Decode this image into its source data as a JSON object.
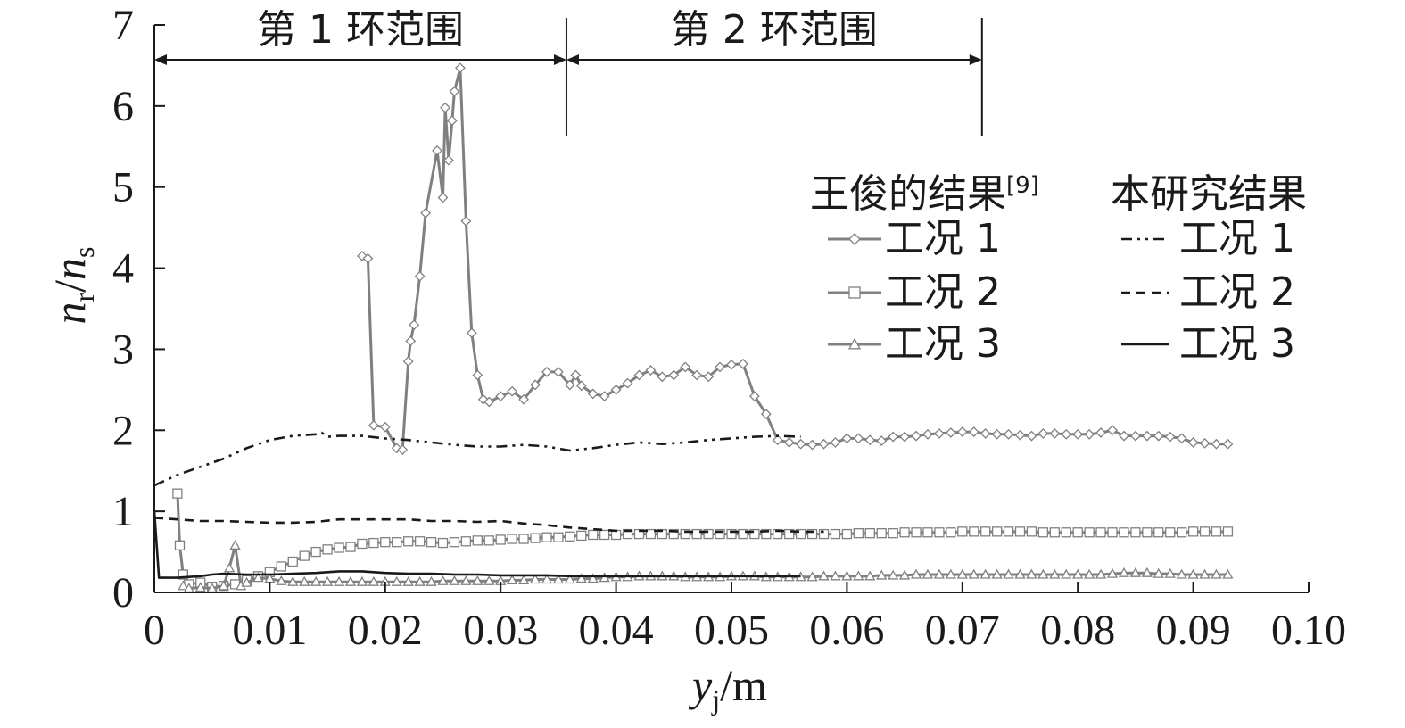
{
  "chart_data": {
    "type": "line",
    "xlabel": {
      "base": "y",
      "sub": "j",
      "unit": "/m"
    },
    "ylabel": {
      "base1": "n",
      "sub1": "r",
      "slash": "/",
      "base2": "n",
      "sub2": "s"
    },
    "xlim": [
      0,
      0.1
    ],
    "ylim": [
      0,
      7
    ],
    "xticks": [
      0,
      0.01,
      0.02,
      0.03,
      0.04,
      0.05,
      0.06,
      0.07,
      0.08,
      0.09,
      0.1
    ],
    "xtick_labels": [
      "0",
      "0.01",
      "0.02",
      "0.03",
      "0.04",
      "0.05",
      "0.06",
      "0.07",
      "0.08",
      "0.09",
      "0.10"
    ],
    "yticks": [
      0,
      1,
      2,
      3,
      4,
      5,
      6,
      7
    ],
    "ytick_labels": [
      "0",
      "1",
      "2",
      "3",
      "4",
      "5",
      "6",
      "7"
    ],
    "grid": false,
    "annotations": [
      {
        "text": "第 1 环范围",
        "x_start": 0,
        "x_end": 0.0357
      },
      {
        "text": "第 2 环范围",
        "x_start": 0.0357,
        "x_end": 0.0717
      }
    ],
    "legend": {
      "placement": "top-right",
      "group1_title": "王俊的结果",
      "group1_ref": "[9]",
      "group2_title": "本研究结果",
      "entries": [
        "工况 1",
        "工况 2",
        "工况 3"
      ]
    },
    "series": [
      {
        "group": "王俊的结果",
        "name": "工况 1",
        "color": "#808080",
        "marker": "diamond",
        "x": [
          0.018,
          0.0185,
          0.019,
          0.02,
          0.021,
          0.0215,
          0.022,
          0.0222,
          0.0225,
          0.023,
          0.0235,
          0.0245,
          0.025,
          0.0252,
          0.0255,
          0.0258,
          0.026,
          0.0265,
          0.027,
          0.0275,
          0.028,
          0.0285,
          0.029,
          0.03,
          0.031,
          0.032,
          0.033,
          0.034,
          0.035,
          0.036,
          0.0365,
          0.037,
          0.038,
          0.039,
          0.04,
          0.041,
          0.042,
          0.043,
          0.044,
          0.045,
          0.046,
          0.047,
          0.048,
          0.049,
          0.05,
          0.051,
          0.052,
          0.053,
          0.054,
          0.055,
          0.056,
          0.057,
          0.058,
          0.059,
          0.06,
          0.061,
          0.062,
          0.063,
          0.064,
          0.065,
          0.066,
          0.067,
          0.068,
          0.069,
          0.07,
          0.071,
          0.072,
          0.073,
          0.074,
          0.075,
          0.076,
          0.077,
          0.078,
          0.079,
          0.08,
          0.081,
          0.082,
          0.083,
          0.084,
          0.085,
          0.086,
          0.087,
          0.088,
          0.089,
          0.09,
          0.091,
          0.092,
          0.093
        ],
        "y": [
          4.15,
          4.12,
          2.06,
          2.04,
          1.78,
          1.76,
          2.85,
          3.1,
          3.3,
          3.9,
          4.68,
          5.45,
          4.87,
          5.98,
          5.33,
          5.82,
          6.18,
          6.47,
          4.58,
          3.2,
          2.68,
          2.38,
          2.35,
          2.42,
          2.48,
          2.38,
          2.56,
          2.72,
          2.72,
          2.56,
          2.68,
          2.55,
          2.45,
          2.42,
          2.5,
          2.58,
          2.68,
          2.74,
          2.66,
          2.68,
          2.78,
          2.68,
          2.66,
          2.78,
          2.81,
          2.82,
          2.42,
          2.2,
          1.88,
          1.85,
          1.83,
          1.82,
          1.83,
          1.85,
          1.9,
          1.9,
          1.88,
          1.87,
          1.92,
          1.92,
          1.93,
          1.95,
          1.96,
          1.97,
          1.98,
          1.98,
          1.96,
          1.95,
          1.95,
          1.94,
          1.93,
          1.96,
          1.96,
          1.95,
          1.95,
          1.95,
          1.97,
          2.0,
          1.93,
          1.93,
          1.93,
          1.93,
          1.92,
          1.9,
          1.85,
          1.84,
          1.83,
          1.83
        ]
      },
      {
        "group": "王俊的结果",
        "name": "工况 2",
        "color": "#808080",
        "marker": "square",
        "x": [
          0.002,
          0.0022,
          0.0025,
          0.003,
          0.004,
          0.005,
          0.006,
          0.007,
          0.008,
          0.009,
          0.01,
          0.011,
          0.012,
          0.013,
          0.014,
          0.015,
          0.016,
          0.017,
          0.018,
          0.019,
          0.02,
          0.021,
          0.022,
          0.023,
          0.024,
          0.025,
          0.026,
          0.027,
          0.028,
          0.029,
          0.03,
          0.031,
          0.032,
          0.033,
          0.034,
          0.035,
          0.036,
          0.037,
          0.038,
          0.039,
          0.04,
          0.041,
          0.042,
          0.043,
          0.044,
          0.045,
          0.046,
          0.047,
          0.048,
          0.049,
          0.05,
          0.051,
          0.052,
          0.053,
          0.054,
          0.055,
          0.056,
          0.057,
          0.058,
          0.059,
          0.06,
          0.061,
          0.062,
          0.063,
          0.064,
          0.065,
          0.066,
          0.067,
          0.068,
          0.069,
          0.07,
          0.071,
          0.072,
          0.073,
          0.074,
          0.075,
          0.076,
          0.077,
          0.078,
          0.079,
          0.08,
          0.081,
          0.082,
          0.083,
          0.084,
          0.085,
          0.086,
          0.087,
          0.088,
          0.089,
          0.09,
          0.091,
          0.092,
          0.093
        ],
        "y": [
          1.22,
          0.58,
          0.22,
          0.1,
          0.12,
          0.07,
          0.08,
          0.1,
          0.15,
          0.2,
          0.25,
          0.32,
          0.38,
          0.45,
          0.5,
          0.53,
          0.55,
          0.56,
          0.6,
          0.61,
          0.62,
          0.62,
          0.63,
          0.63,
          0.62,
          0.61,
          0.62,
          0.63,
          0.64,
          0.64,
          0.65,
          0.66,
          0.66,
          0.67,
          0.68,
          0.68,
          0.69,
          0.7,
          0.71,
          0.71,
          0.71,
          0.72,
          0.72,
          0.72,
          0.72,
          0.72,
          0.72,
          0.72,
          0.72,
          0.72,
          0.72,
          0.72,
          0.72,
          0.72,
          0.72,
          0.72,
          0.72,
          0.72,
          0.72,
          0.72,
          0.72,
          0.73,
          0.73,
          0.73,
          0.73,
          0.74,
          0.74,
          0.74,
          0.74,
          0.74,
          0.75,
          0.75,
          0.75,
          0.75,
          0.75,
          0.75,
          0.75,
          0.74,
          0.74,
          0.74,
          0.74,
          0.74,
          0.74,
          0.74,
          0.74,
          0.74,
          0.74,
          0.74,
          0.74,
          0.74,
          0.75,
          0.75,
          0.75,
          0.75
        ]
      },
      {
        "group": "王俊的结果",
        "name": "工况 3",
        "color": "#808080",
        "marker": "triangle",
        "x": [
          0.0025,
          0.003,
          0.004,
          0.005,
          0.006,
          0.0065,
          0.007,
          0.0075,
          0.008,
          0.009,
          0.01,
          0.011,
          0.012,
          0.013,
          0.014,
          0.015,
          0.016,
          0.017,
          0.018,
          0.019,
          0.02,
          0.021,
          0.022,
          0.023,
          0.024,
          0.025,
          0.026,
          0.027,
          0.028,
          0.029,
          0.03,
          0.031,
          0.032,
          0.033,
          0.034,
          0.035,
          0.036,
          0.037,
          0.038,
          0.039,
          0.04,
          0.041,
          0.042,
          0.043,
          0.044,
          0.045,
          0.046,
          0.047,
          0.048,
          0.049,
          0.05,
          0.051,
          0.052,
          0.053,
          0.054,
          0.055,
          0.056,
          0.057,
          0.058,
          0.059,
          0.06,
          0.061,
          0.062,
          0.063,
          0.064,
          0.065,
          0.066,
          0.067,
          0.068,
          0.069,
          0.07,
          0.071,
          0.072,
          0.073,
          0.074,
          0.075,
          0.076,
          0.077,
          0.078,
          0.079,
          0.08,
          0.081,
          0.082,
          0.083,
          0.084,
          0.085,
          0.086,
          0.087,
          0.088,
          0.089,
          0.09,
          0.091,
          0.092,
          0.093
        ],
        "y": [
          0.08,
          0.05,
          0.06,
          0.05,
          0.08,
          0.3,
          0.58,
          0.08,
          0.12,
          0.18,
          0.17,
          0.14,
          0.13,
          0.13,
          0.13,
          0.13,
          0.13,
          0.13,
          0.13,
          0.13,
          0.13,
          0.13,
          0.13,
          0.13,
          0.13,
          0.14,
          0.14,
          0.14,
          0.14,
          0.14,
          0.14,
          0.15,
          0.15,
          0.16,
          0.16,
          0.16,
          0.16,
          0.17,
          0.17,
          0.18,
          0.19,
          0.19,
          0.2,
          0.2,
          0.2,
          0.2,
          0.19,
          0.19,
          0.19,
          0.19,
          0.2,
          0.2,
          0.2,
          0.19,
          0.19,
          0.19,
          0.19,
          0.19,
          0.2,
          0.2,
          0.2,
          0.2,
          0.2,
          0.21,
          0.21,
          0.21,
          0.22,
          0.22,
          0.22,
          0.22,
          0.22,
          0.22,
          0.22,
          0.22,
          0.22,
          0.22,
          0.22,
          0.22,
          0.22,
          0.22,
          0.22,
          0.22,
          0.22,
          0.23,
          0.24,
          0.24,
          0.24,
          0.23,
          0.23,
          0.22,
          0.22,
          0.22,
          0.22,
          0.22
        ]
      },
      {
        "group": "本研究结果",
        "name": "工况 1",
        "color": "#1a1a1a",
        "dash": "12 6 3 6 3 6",
        "x": [
          0,
          0.002,
          0.004,
          0.006,
          0.008,
          0.01,
          0.012,
          0.014,
          0.0145,
          0.015,
          0.016,
          0.018,
          0.02,
          0.022,
          0.024,
          0.026,
          0.028,
          0.03,
          0.032,
          0.034,
          0.036,
          0.038,
          0.04,
          0.042,
          0.044,
          0.046,
          0.048,
          0.05,
          0.052,
          0.054,
          0.056
        ],
        "y": [
          1.32,
          1.45,
          1.55,
          1.65,
          1.78,
          1.88,
          1.93,
          1.95,
          1.97,
          1.92,
          1.93,
          1.93,
          1.9,
          1.88,
          1.85,
          1.82,
          1.8,
          1.8,
          1.82,
          1.8,
          1.75,
          1.78,
          1.82,
          1.85,
          1.83,
          1.85,
          1.88,
          1.9,
          1.92,
          1.93,
          1.92
        ]
      },
      {
        "group": "本研究结果",
        "name": "工况 2",
        "color": "#1a1a1a",
        "dash": "10 7",
        "x": [
          0,
          0.002,
          0.004,
          0.006,
          0.008,
          0.01,
          0.012,
          0.014,
          0.016,
          0.018,
          0.02,
          0.022,
          0.024,
          0.026,
          0.028,
          0.03,
          0.032,
          0.034,
          0.036,
          0.038,
          0.04,
          0.042,
          0.044,
          0.046,
          0.048,
          0.05,
          0.052,
          0.054,
          0.056,
          0.058
        ],
        "y": [
          0.92,
          0.9,
          0.88,
          0.88,
          0.87,
          0.86,
          0.86,
          0.87,
          0.9,
          0.9,
          0.9,
          0.9,
          0.88,
          0.88,
          0.87,
          0.88,
          0.85,
          0.83,
          0.8,
          0.78,
          0.76,
          0.76,
          0.76,
          0.75,
          0.75,
          0.75,
          0.75,
          0.76,
          0.75,
          0.75
        ]
      },
      {
        "group": "本研究结果",
        "name": "工况 3",
        "color": "#1a1a1a",
        "dash": "",
        "x": [
          0,
          0.0004,
          0.002,
          0.004,
          0.005,
          0.006,
          0.008,
          0.01,
          0.012,
          0.014,
          0.016,
          0.018,
          0.02,
          0.022,
          0.024,
          0.026,
          0.028,
          0.03,
          0.032,
          0.034,
          0.036,
          0.038,
          0.04,
          0.042,
          0.044,
          0.046,
          0.048,
          0.05,
          0.052,
          0.054,
          0.056
        ],
        "y": [
          1.0,
          0.18,
          0.18,
          0.2,
          0.22,
          0.23,
          0.22,
          0.22,
          0.23,
          0.24,
          0.26,
          0.26,
          0.24,
          0.23,
          0.23,
          0.22,
          0.22,
          0.21,
          0.21,
          0.21,
          0.2,
          0.2,
          0.2,
          0.2,
          0.2,
          0.2,
          0.2,
          0.2,
          0.2,
          0.2,
          0.2
        ]
      }
    ]
  }
}
